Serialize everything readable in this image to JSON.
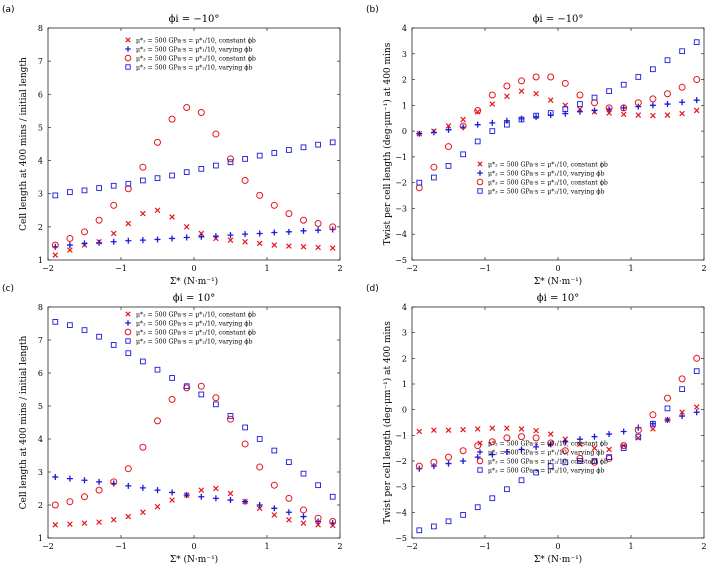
{
  "colors": {
    "red": "#e8141c",
    "blue": "#1a1adb",
    "axis": "#262626"
  },
  "legend_labels": [
    "μ*₂ = 500 GPa·s = μ*₁/10, constant ϕb",
    "μ*₂ = 500 GPa·s = μ*₁/10, varying ϕb",
    "μ*₃ = 500 GPa·s = μ*₂/10, constant ϕb",
    "μ*₃ = 500 GPa·s = μ*₂/10, varying ϕb"
  ],
  "chart_data": [
    {
      "panel": "(a)",
      "type": "scatter",
      "title": "ϕi = −10°",
      "xlabel": "Σ* (N·m⁻¹)",
      "ylabel": "Cell length at 400 mins / initial length",
      "xlim": [
        -2,
        2
      ],
      "ylim": [
        1,
        8
      ],
      "xticks": [
        -2,
        -1,
        0,
        1,
        2
      ],
      "yticks": [
        1,
        2,
        3,
        4,
        5,
        6,
        7,
        8
      ],
      "x": [
        -1.9,
        -1.7,
        -1.5,
        -1.3,
        -1.1,
        -0.9,
        -0.7,
        -0.5,
        -0.3,
        -0.1,
        0.1,
        0.3,
        0.5,
        0.7,
        0.9,
        1.1,
        1.3,
        1.5,
        1.7,
        1.9
      ],
      "series": [
        {
          "name": "x-red",
          "values": [
            1.15,
            1.3,
            1.45,
            1.55,
            1.8,
            2.1,
            2.4,
            2.5,
            2.3,
            2.0,
            1.8,
            1.65,
            1.6,
            1.55,
            1.5,
            1.45,
            1.42,
            1.4,
            1.38,
            1.36
          ]
        },
        {
          "name": "plus-blue",
          "values": [
            1.4,
            1.45,
            1.5,
            1.52,
            1.55,
            1.58,
            1.6,
            1.62,
            1.65,
            1.68,
            1.7,
            1.72,
            1.75,
            1.78,
            1.8,
            1.83,
            1.85,
            1.88,
            1.9,
            1.92
          ]
        },
        {
          "name": "circle-red",
          "values": [
            1.45,
            1.65,
            1.85,
            2.2,
            2.65,
            3.15,
            3.8,
            4.55,
            5.25,
            5.6,
            5.45,
            4.8,
            4.05,
            3.4,
            2.95,
            2.65,
            2.4,
            2.2,
            2.1,
            2.0
          ]
        },
        {
          "name": "square-blue",
          "values": [
            2.95,
            3.05,
            3.1,
            3.17,
            3.24,
            3.3,
            3.4,
            3.47,
            3.55,
            3.65,
            3.75,
            3.85,
            3.95,
            4.05,
            4.15,
            4.23,
            4.32,
            4.4,
            4.48,
            4.55
          ]
        }
      ]
    },
    {
      "panel": "(b)",
      "type": "scatter",
      "title": "ϕi = −10°",
      "xlabel": "Σ* (N·m⁻¹)",
      "ylabel": "Twist per cell length (deg·μm⁻¹) at 400 mins",
      "xlim": [
        -2,
        2
      ],
      "ylim": [
        -5,
        4
      ],
      "xticks": [
        -2,
        -1,
        0,
        1,
        2
      ],
      "yticks": [
        -5,
        -4,
        -3,
        -2,
        -1,
        0,
        1,
        2,
        3,
        4
      ],
      "x": [
        -1.9,
        -1.7,
        -1.5,
        -1.3,
        -1.1,
        -0.9,
        -0.7,
        -0.5,
        -0.3,
        -0.1,
        0.1,
        0.3,
        0.5,
        0.7,
        0.9,
        1.1,
        1.3,
        1.5,
        1.7,
        1.9
      ],
      "series": [
        {
          "name": "x-red",
          "values": [
            -0.1,
            0.0,
            0.2,
            0.45,
            0.75,
            1.05,
            1.35,
            1.55,
            1.45,
            1.2,
            1.0,
            0.85,
            0.75,
            0.7,
            0.65,
            0.62,
            0.6,
            0.62,
            0.68,
            0.8
          ]
        },
        {
          "name": "plus-blue",
          "values": [
            -0.1,
            -0.05,
            0.05,
            0.15,
            0.25,
            0.32,
            0.4,
            0.48,
            0.55,
            0.62,
            0.68,
            0.75,
            0.8,
            0.85,
            0.9,
            0.95,
            1.0,
            1.05,
            1.12,
            1.2
          ]
        },
        {
          "name": "circle-red",
          "values": [
            -2.2,
            -1.4,
            -0.6,
            0.2,
            0.8,
            1.4,
            1.75,
            1.95,
            2.1,
            2.1,
            1.85,
            1.4,
            1.1,
            0.9,
            0.9,
            1.1,
            1.25,
            1.45,
            1.7,
            2.0
          ]
        },
        {
          "name": "square-blue",
          "values": [
            -2.0,
            -1.8,
            -1.35,
            -0.9,
            -0.4,
            0.0,
            0.25,
            0.45,
            0.6,
            0.7,
            0.85,
            1.05,
            1.3,
            1.55,
            1.8,
            2.1,
            2.4,
            2.75,
            3.1,
            3.45
          ]
        }
      ]
    },
    {
      "panel": "(c)",
      "type": "scatter",
      "title": "ϕi = 10°",
      "xlabel": "Σ* (N·m⁻¹)",
      "ylabel": "Cell length at 400 mins / initial length",
      "xlim": [
        -2,
        2
      ],
      "ylim": [
        1,
        8
      ],
      "xticks": [
        -2,
        -1,
        0,
        1,
        2
      ],
      "yticks": [
        1,
        2,
        3,
        4,
        5,
        6,
        7,
        8
      ],
      "x": [
        -1.9,
        -1.7,
        -1.5,
        -1.3,
        -1.1,
        -0.9,
        -0.7,
        -0.5,
        -0.3,
        -0.1,
        0.1,
        0.3,
        0.5,
        0.7,
        0.9,
        1.1,
        1.3,
        1.5,
        1.7,
        1.9
      ],
      "series": [
        {
          "name": "x-red",
          "values": [
            1.4,
            1.42,
            1.45,
            1.48,
            1.55,
            1.65,
            1.78,
            1.95,
            2.15,
            2.3,
            2.45,
            2.5,
            2.35,
            2.1,
            1.9,
            1.7,
            1.55,
            1.45,
            1.4,
            1.38
          ]
        },
        {
          "name": "plus-blue",
          "values": [
            2.85,
            2.8,
            2.75,
            2.7,
            2.65,
            2.58,
            2.52,
            2.45,
            2.38,
            2.3,
            2.25,
            2.2,
            2.15,
            2.1,
            2.0,
            1.9,
            1.78,
            1.65,
            1.5,
            1.45
          ]
        },
        {
          "name": "circle-red",
          "values": [
            2.0,
            2.1,
            2.25,
            2.45,
            2.7,
            3.1,
            3.75,
            4.55,
            5.2,
            5.55,
            5.6,
            5.25,
            4.6,
            3.85,
            3.15,
            2.6,
            2.2,
            1.85,
            1.6,
            1.5
          ]
        },
        {
          "name": "square-blue",
          "values": [
            7.55,
            7.45,
            7.3,
            7.1,
            6.85,
            6.6,
            6.35,
            6.1,
            5.85,
            5.6,
            5.35,
            5.05,
            4.7,
            4.35,
            4.0,
            3.65,
            3.3,
            2.95,
            2.6,
            2.25
          ]
        }
      ]
    },
    {
      "panel": "(d)",
      "type": "scatter",
      "title": "ϕi = 10°",
      "xlabel": "Σ* (N·m⁻¹)",
      "ylabel": "Twist per cell length (deg·μm⁻¹) at 400 mins",
      "xlim": [
        -2,
        2
      ],
      "ylim": [
        -5,
        4
      ],
      "xticks": [
        -2,
        -1,
        0,
        1,
        2
      ],
      "yticks": [
        -5,
        -4,
        -3,
        -2,
        -1,
        0,
        1,
        2,
        3,
        4
      ],
      "x": [
        -1.9,
        -1.7,
        -1.5,
        -1.3,
        -1.1,
        -0.9,
        -0.7,
        -0.5,
        -0.3,
        -0.1,
        0.1,
        0.3,
        0.5,
        0.7,
        0.9,
        1.1,
        1.3,
        1.5,
        1.7,
        1.9
      ],
      "series": [
        {
          "name": "x-red",
          "values": [
            -0.85,
            -0.8,
            -0.8,
            -0.78,
            -0.75,
            -0.72,
            -0.72,
            -0.75,
            -0.82,
            -0.95,
            -1.15,
            -1.35,
            -1.5,
            -1.55,
            -1.4,
            -1.1,
            -0.75,
            -0.4,
            -0.1,
            0.1
          ]
        },
        {
          "name": "plus-blue",
          "values": [
            -2.3,
            -2.2,
            -2.1,
            -2.0,
            -1.85,
            -1.75,
            -1.65,
            -1.55,
            -1.45,
            -1.35,
            -1.25,
            -1.15,
            -1.05,
            -0.95,
            -0.85,
            -0.7,
            -0.55,
            -0.4,
            -0.25,
            -0.1
          ]
        },
        {
          "name": "circle-red",
          "values": [
            -2.2,
            -2.05,
            -1.85,
            -1.6,
            -1.4,
            -1.25,
            -1.1,
            -1.05,
            -1.1,
            -1.3,
            -1.6,
            -1.9,
            -2.05,
            -1.9,
            -1.4,
            -0.8,
            -0.2,
            0.45,
            1.2,
            2.0
          ]
        },
        {
          "name": "square-blue",
          "values": [
            -4.7,
            -4.55,
            -4.35,
            -4.1,
            -3.8,
            -3.45,
            -3.1,
            -2.75,
            -2.45,
            -2.2,
            -2.05,
            -2.0,
            -2.0,
            -1.85,
            -1.5,
            -1.05,
            -0.55,
            0.05,
            0.8,
            1.5
          ]
        }
      ]
    }
  ]
}
